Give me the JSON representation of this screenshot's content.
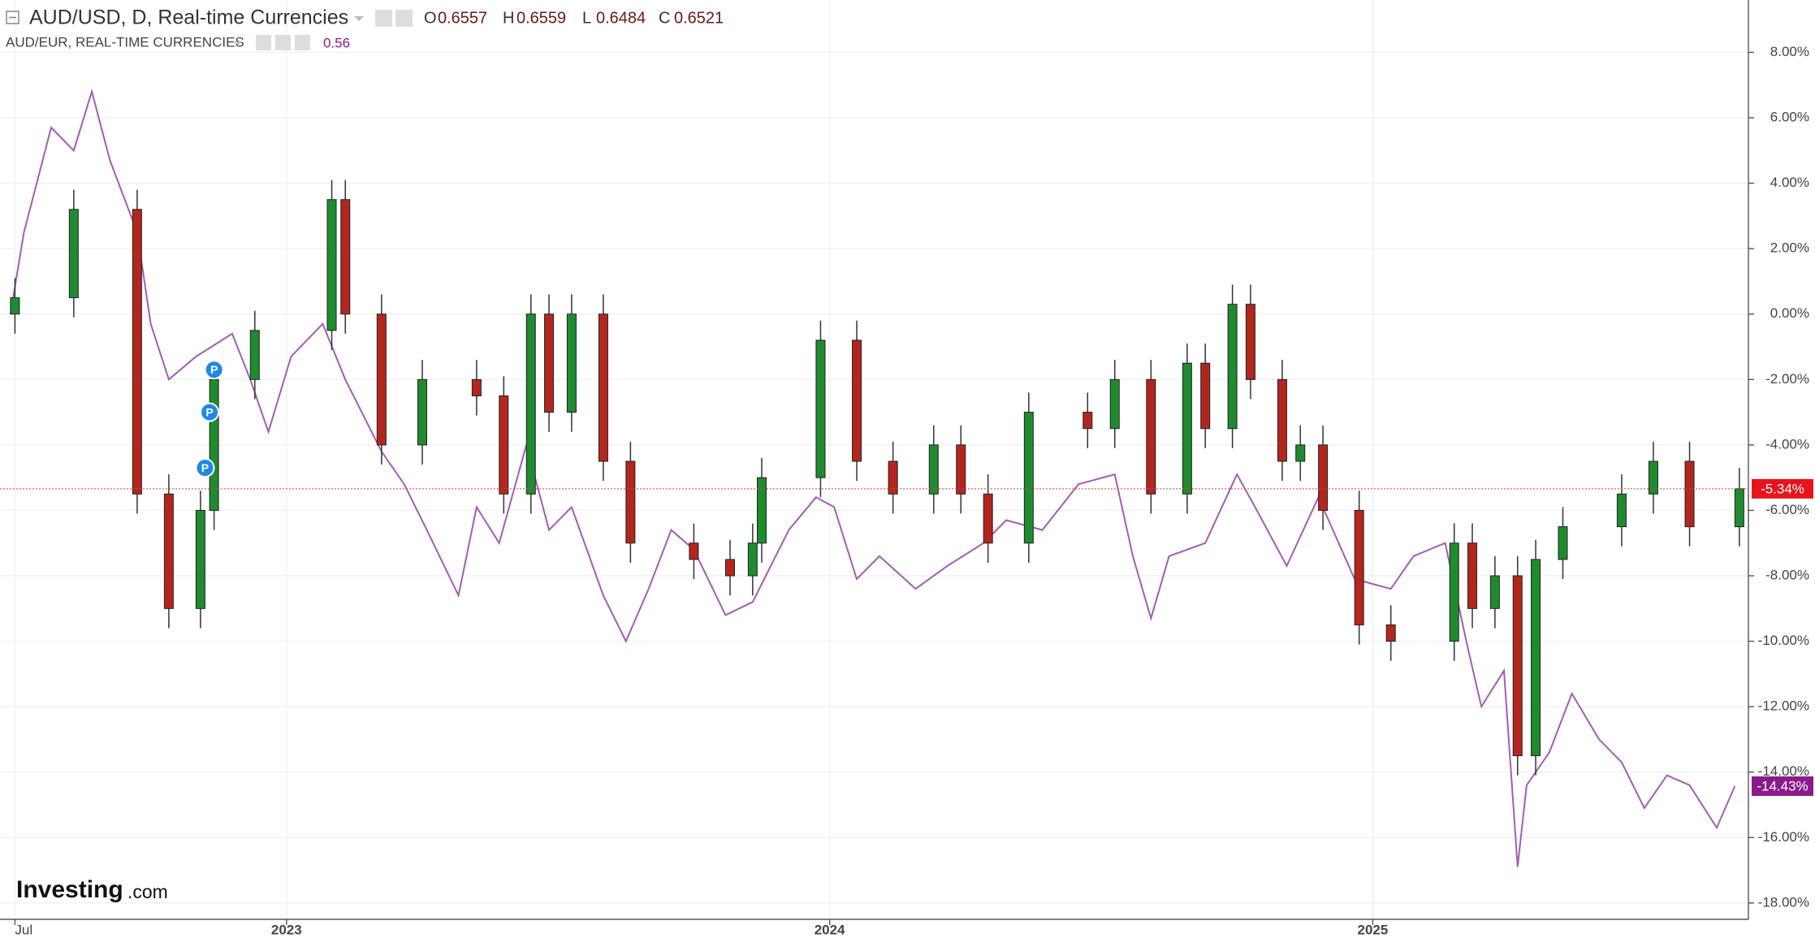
{
  "header": {
    "title": "AUD/USD, D, Real-time Currencies",
    "ohlc": [
      {
        "key": "O",
        "value": "0.6557"
      },
      {
        "key": "H",
        "value": "0.6559"
      },
      {
        "key": "L",
        "value": "0.6484"
      },
      {
        "key": "C",
        "value": "0.6521"
      }
    ],
    "compare_title": "AUD/EUR, REAL-TIME CURRENCIES",
    "compare_value": "0.56"
  },
  "logo": {
    "brand": "Investing",
    "suffix": ".com"
  },
  "chart_data": {
    "type": "candlestick",
    "xlim": [
      -0.33,
      38.3
    ],
    "xticks": [
      {
        "value": 0,
        "label": "Jul"
      },
      {
        "value": 6,
        "label": "2023"
      },
      {
        "value": 18,
        "label": "2024"
      },
      {
        "value": 30,
        "label": "2025"
      }
    ],
    "ylim": [
      -18.5,
      9.6
    ],
    "yticks": [
      {
        "value": 8,
        "label": "8.00%"
      },
      {
        "value": 6,
        "label": "6.00%"
      },
      {
        "value": 4,
        "label": "4.00%"
      },
      {
        "value": 2,
        "label": "2.00%"
      },
      {
        "value": 0,
        "label": "0.00%"
      },
      {
        "value": -2,
        "label": "-2.00%"
      },
      {
        "value": -4,
        "label": "-4.00%"
      },
      {
        "value": -6,
        "label": "-6.00%"
      },
      {
        "value": -8,
        "label": "-8.00%"
      },
      {
        "value": -10,
        "label": "-10.00%"
      },
      {
        "value": -12,
        "label": "-12.00%"
      },
      {
        "value": -14,
        "label": "-14.00%"
      },
      {
        "value": -16,
        "label": "-16.00%"
      },
      {
        "value": -18,
        "label": "-18.00%"
      }
    ],
    "grid": true,
    "candles": {
      "name": "AUD/USD",
      "up_color": "#1f8b2f",
      "down_color": "#b3261e",
      "x": [
        0,
        1.3,
        2.7,
        3.4,
        4.1,
        4.4,
        5.3,
        7,
        7.3,
        8.1,
        9,
        10.2,
        10.8,
        11.4,
        11.8,
        12.3,
        13,
        13.6,
        15,
        15.8,
        16.3,
        16.5,
        17.8,
        18.6,
        19.4,
        20.3,
        20.9,
        21.5,
        22.4,
        23.7,
        24.3,
        25.1,
        25.9,
        26.3,
        26.9,
        27.3,
        28,
        28.4,
        28.9,
        29.7,
        30.4,
        31.8,
        32.2,
        32.7,
        33.2,
        33.6,
        34.2,
        35.5,
        36.2,
        37,
        38.1
      ],
      "open": [
        0,
        0.5,
        3.2,
        -5.5,
        -9,
        -6,
        -2,
        -0.5,
        3.5,
        0,
        -4,
        -2,
        -2.5,
        -5.5,
        0,
        -3,
        0,
        -4.5,
        -7,
        -7.5,
        -8,
        -7,
        -5,
        -0.8,
        -4.5,
        -5.5,
        -4,
        -5.5,
        -7,
        -3,
        -3.5,
        -2,
        -5.5,
        -1.5,
        -3.5,
        0.3,
        -2,
        -4.5,
        -4,
        -6,
        -9.5,
        -10,
        -7,
        -9,
        -8,
        -13.5,
        -7.5,
        -6.5,
        -5.5,
        -4.5,
        -6.5
      ],
      "high": [
        1.1,
        3.8,
        3.8,
        -4.9,
        -5.4,
        -1.4,
        0.1,
        4.1,
        4.1,
        0.6,
        -1.4,
        -1.4,
        -1.9,
        0.6,
        0.6,
        0.6,
        0.6,
        -3.9,
        -6.4,
        -6.9,
        -6.4,
        -4.4,
        -0.2,
        -0.2,
        -3.9,
        -3.4,
        -3.4,
        -4.9,
        -2.4,
        -2.4,
        -1.4,
        -1.4,
        -0.9,
        -0.9,
        0.9,
        0.9,
        -1.4,
        -3.4,
        -3.4,
        -5.4,
        -8.9,
        -6.4,
        -6.4,
        -7.4,
        -7.4,
        -6.9,
        -5.9,
        -4.9,
        -3.9,
        -3.9,
        -4.7
      ],
      "low": [
        -0.6,
        -0.1,
        -6.1,
        -9.6,
        -9.6,
        -6.6,
        -2.6,
        -1.1,
        -0.6,
        -4.6,
        -4.6,
        -3.1,
        -6.1,
        -6.1,
        -3.6,
        -3.6,
        -5.1,
        -7.6,
        -8.1,
        -8.6,
        -8.6,
        -7.6,
        -5.6,
        -5.1,
        -6.1,
        -6.1,
        -6.1,
        -7.6,
        -7.6,
        -4.1,
        -4.1,
        -6.1,
        -6.1,
        -4.1,
        -4.1,
        -2.6,
        -5.1,
        -5.1,
        -6.6,
        -10.1,
        -10.6,
        -10.6,
        -9.6,
        -9.6,
        -14.1,
        -14.1,
        -8.1,
        -7.1,
        -6.1,
        -7.1,
        -7.1
      ],
      "close": [
        0.5,
        3.2,
        -5.5,
        -9,
        -6,
        -2,
        -0.5,
        3.5,
        0,
        -4,
        -2,
        -2.5,
        -5.5,
        0,
        -3,
        0,
        -4.5,
        -7,
        -7.5,
        -8,
        -7,
        -5,
        -0.8,
        -4.5,
        -5.5,
        -4,
        -5.5,
        -7,
        -3,
        -3.5,
        -2,
        -5.5,
        -1.5,
        -3.5,
        0.3,
        -2,
        -4.5,
        -4,
        -6,
        -9.5,
        -10,
        -7,
        -9,
        -8,
        -13.5,
        -7.5,
        -6.5,
        -5.5,
        -4.5,
        -6.5,
        -5.34
      ],
      "badge_label": "-5.34%"
    },
    "series": [
      {
        "name": "AUD/EUR",
        "color": "#a45cb5",
        "badge_color": "#8b1a8b",
        "x": [
          -0.1,
          0.2,
          0.8,
          1.3,
          1.7,
          2.1,
          2.7,
          3.0,
          3.4,
          4.0,
          4.8,
          5.2,
          5.6,
          6.1,
          6.8,
          7.3,
          8.1,
          8.6,
          9.1,
          9.8,
          10.2,
          10.7,
          11.3,
          11.8,
          12.3,
          13.0,
          13.5,
          14.0,
          14.5,
          15.0,
          15.7,
          16.3,
          17.1,
          17.7,
          18.1,
          18.6,
          19.1,
          19.9,
          20.6,
          21.4,
          21.9,
          22.7,
          23.5,
          24.3,
          24.7,
          25.1,
          25.5,
          26.3,
          27.0,
          27.4,
          28.1,
          28.8,
          29.6,
          30.4,
          30.9,
          31.6,
          32.1,
          32.4,
          32.9,
          33.2,
          33.4,
          33.9,
          34.4,
          35.0,
          35.5,
          36.0,
          36.5,
          37.0,
          37.6,
          38.0
        ],
        "values": [
          0,
          2.5,
          5.7,
          5,
          6.8,
          4.7,
          2.5,
          -0.3,
          -2,
          -1.3,
          -0.6,
          -2,
          -3.6,
          -1.3,
          -0.3,
          -2,
          -4.2,
          -5.2,
          -6.6,
          -8.6,
          -5.9,
          -7,
          -4,
          -6.6,
          -5.9,
          -8.6,
          -10,
          -8.4,
          -6.6,
          -7.2,
          -9.2,
          -8.8,
          -6.6,
          -5.6,
          -5.9,
          -8.1,
          -7.4,
          -8.4,
          -7.7,
          -7,
          -6.3,
          -6.6,
          -5.2,
          -4.9,
          -7.4,
          -9.3,
          -7.4,
          -7,
          -4.9,
          -5.9,
          -7.7,
          -5.6,
          -8.1,
          -8.4,
          -7.4,
          -7,
          -10.2,
          -12,
          -10.9,
          -16.9,
          -14.4,
          -13.4,
          -11.6,
          -13,
          -13.7,
          -15.1,
          -14.1,
          -14.4,
          -15.7,
          -14.43
        ],
        "badge_label": "-14.43%"
      }
    ],
    "markers": [
      {
        "label": "P",
        "x": 4.4,
        "y": -1.7,
        "color": "#1e88e5"
      },
      {
        "label": "P",
        "x": 4.3,
        "y": -3.0,
        "color": "#1e88e5"
      },
      {
        "label": "P",
        "x": 4.2,
        "y": -4.7,
        "color": "#1e88e5"
      }
    ]
  }
}
